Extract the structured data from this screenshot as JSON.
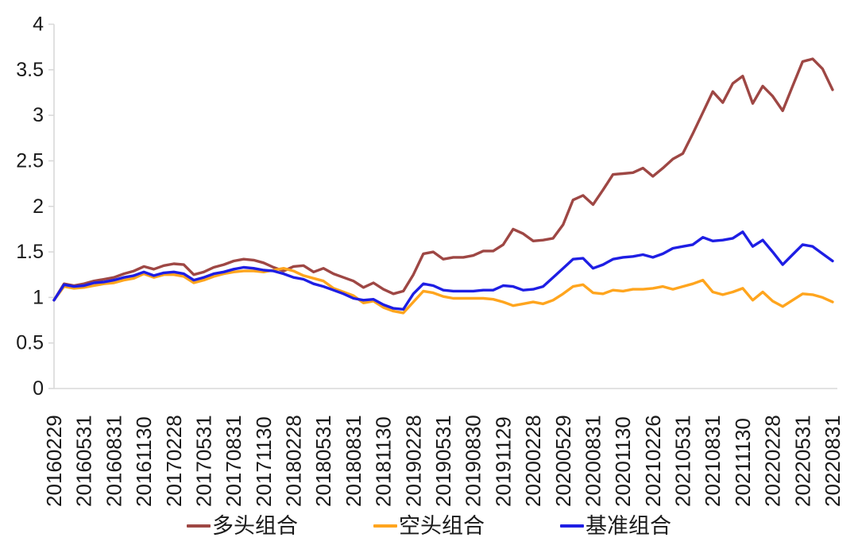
{
  "chart_data": {
    "type": "line",
    "title": "",
    "xlabel": "",
    "ylabel": "",
    "ylim": [
      0,
      4
    ],
    "grid": false,
    "legend_position": "bottom",
    "y_tick_labels": [
      "0",
      "0.5",
      "1",
      "1.5",
      "2",
      "2.5",
      "3",
      "3.5",
      "4"
    ],
    "y_tick_values": [
      0,
      0.5,
      1,
      1.5,
      2,
      2.5,
      3,
      3.5,
      4
    ],
    "x_tick_labels": [
      "20160229",
      "20160531",
      "20160831",
      "20161130",
      "20170228",
      "20170531",
      "20170831",
      "20171130",
      "20180228",
      "20180531",
      "20180831",
      "20181130",
      "20190228",
      "20190531",
      "20190830",
      "20191129",
      "20200228",
      "20200529",
      "20200831",
      "20201130",
      "20210226",
      "20210531",
      "20210831",
      "20211130",
      "20220228",
      "20220531",
      "20220831"
    ],
    "points_per_tick": 3,
    "n_points": 79,
    "axis_color": "#d9d9d9",
    "text_color": "#1a1a1a",
    "series": [
      {
        "name": "多头组合",
        "color": "#9e4744",
        "values": [
          0.97,
          1.15,
          1.13,
          1.15,
          1.18,
          1.2,
          1.22,
          1.26,
          1.29,
          1.34,
          1.31,
          1.35,
          1.37,
          1.36,
          1.25,
          1.28,
          1.33,
          1.36,
          1.4,
          1.42,
          1.41,
          1.38,
          1.33,
          1.29,
          1.34,
          1.35,
          1.28,
          1.32,
          1.26,
          1.22,
          1.18,
          1.11,
          1.16,
          1.09,
          1.04,
          1.07,
          1.25,
          1.48,
          1.5,
          1.42,
          1.44,
          1.44,
          1.46,
          1.51,
          1.51,
          1.58,
          1.75,
          1.7,
          1.62,
          1.63,
          1.65,
          1.8,
          2.07,
          2.12,
          2.02,
          2.18,
          2.35,
          2.36,
          2.37,
          2.42,
          2.33,
          2.42,
          2.52,
          2.58,
          2.8,
          3.03,
          3.26,
          3.14,
          3.35,
          3.43,
          3.13,
          3.32,
          3.21,
          3.05,
          3.32,
          3.59,
          3.62,
          3.51,
          3.28
        ]
      },
      {
        "name": "空头组合",
        "color": "#ffa51e",
        "values": [
          0.97,
          1.12,
          1.1,
          1.11,
          1.13,
          1.15,
          1.16,
          1.19,
          1.21,
          1.26,
          1.22,
          1.25,
          1.25,
          1.23,
          1.16,
          1.19,
          1.23,
          1.26,
          1.28,
          1.29,
          1.29,
          1.28,
          1.3,
          1.32,
          1.29,
          1.24,
          1.21,
          1.18,
          1.1,
          1.06,
          1.02,
          0.94,
          0.96,
          0.89,
          0.85,
          0.83,
          0.95,
          1.07,
          1.05,
          1.01,
          0.99,
          0.99,
          0.99,
          0.99,
          0.98,
          0.95,
          0.91,
          0.93,
          0.95,
          0.93,
          0.97,
          1.04,
          1.12,
          1.14,
          1.05,
          1.04,
          1.08,
          1.07,
          1.09,
          1.09,
          1.1,
          1.12,
          1.09,
          1.12,
          1.15,
          1.19,
          1.06,
          1.03,
          1.06,
          1.1,
          0.97,
          1.06,
          0.96,
          0.9,
          0.97,
          1.04,
          1.03,
          1.0,
          0.95
        ]
      },
      {
        "name": "基准组合",
        "color": "#1e1ee4",
        "values": [
          0.97,
          1.14,
          1.12,
          1.13,
          1.16,
          1.17,
          1.19,
          1.22,
          1.24,
          1.28,
          1.24,
          1.27,
          1.28,
          1.26,
          1.19,
          1.22,
          1.26,
          1.28,
          1.31,
          1.33,
          1.32,
          1.3,
          1.29,
          1.26,
          1.22,
          1.2,
          1.15,
          1.12,
          1.08,
          1.04,
          0.99,
          0.97,
          0.98,
          0.92,
          0.88,
          0.87,
          1.04,
          1.15,
          1.13,
          1.08,
          1.07,
          1.07,
          1.07,
          1.08,
          1.08,
          1.13,
          1.12,
          1.08,
          1.09,
          1.12,
          1.22,
          1.32,
          1.42,
          1.43,
          1.32,
          1.36,
          1.42,
          1.44,
          1.45,
          1.47,
          1.44,
          1.48,
          1.54,
          1.56,
          1.58,
          1.66,
          1.62,
          1.63,
          1.65,
          1.72,
          1.56,
          1.63,
          1.5,
          1.36,
          1.47,
          1.58,
          1.56,
          1.48,
          1.4
        ]
      }
    ]
  }
}
